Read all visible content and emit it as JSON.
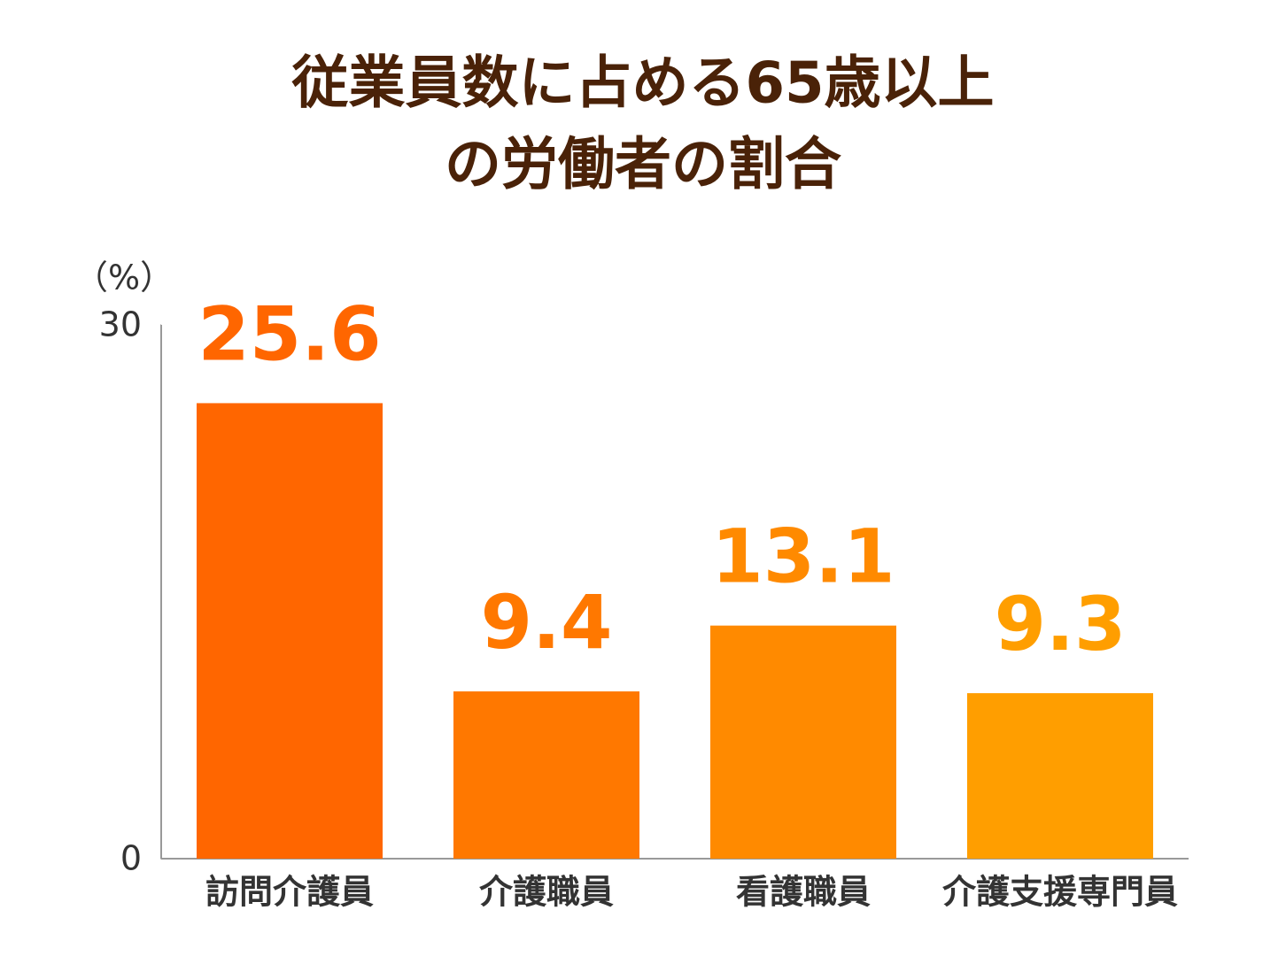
{
  "chart_data": {
    "type": "bar",
    "title": [
      "従業員数に占める65歳以上",
      "の労働者の割合"
    ],
    "y_unit": "（%）",
    "categories": [
      "訪問介護員",
      "介護職員",
      "看護職員",
      "介護支援専門員"
    ],
    "values": [
      25.6,
      9.4,
      13.1,
      9.3
    ],
    "colors": [
      "#ff6600",
      "#ff7800",
      "#ff8a00",
      "#ff9e00"
    ],
    "ylim": [
      0,
      30
    ],
    "yticks": [
      0,
      30
    ],
    "grid": false
  }
}
